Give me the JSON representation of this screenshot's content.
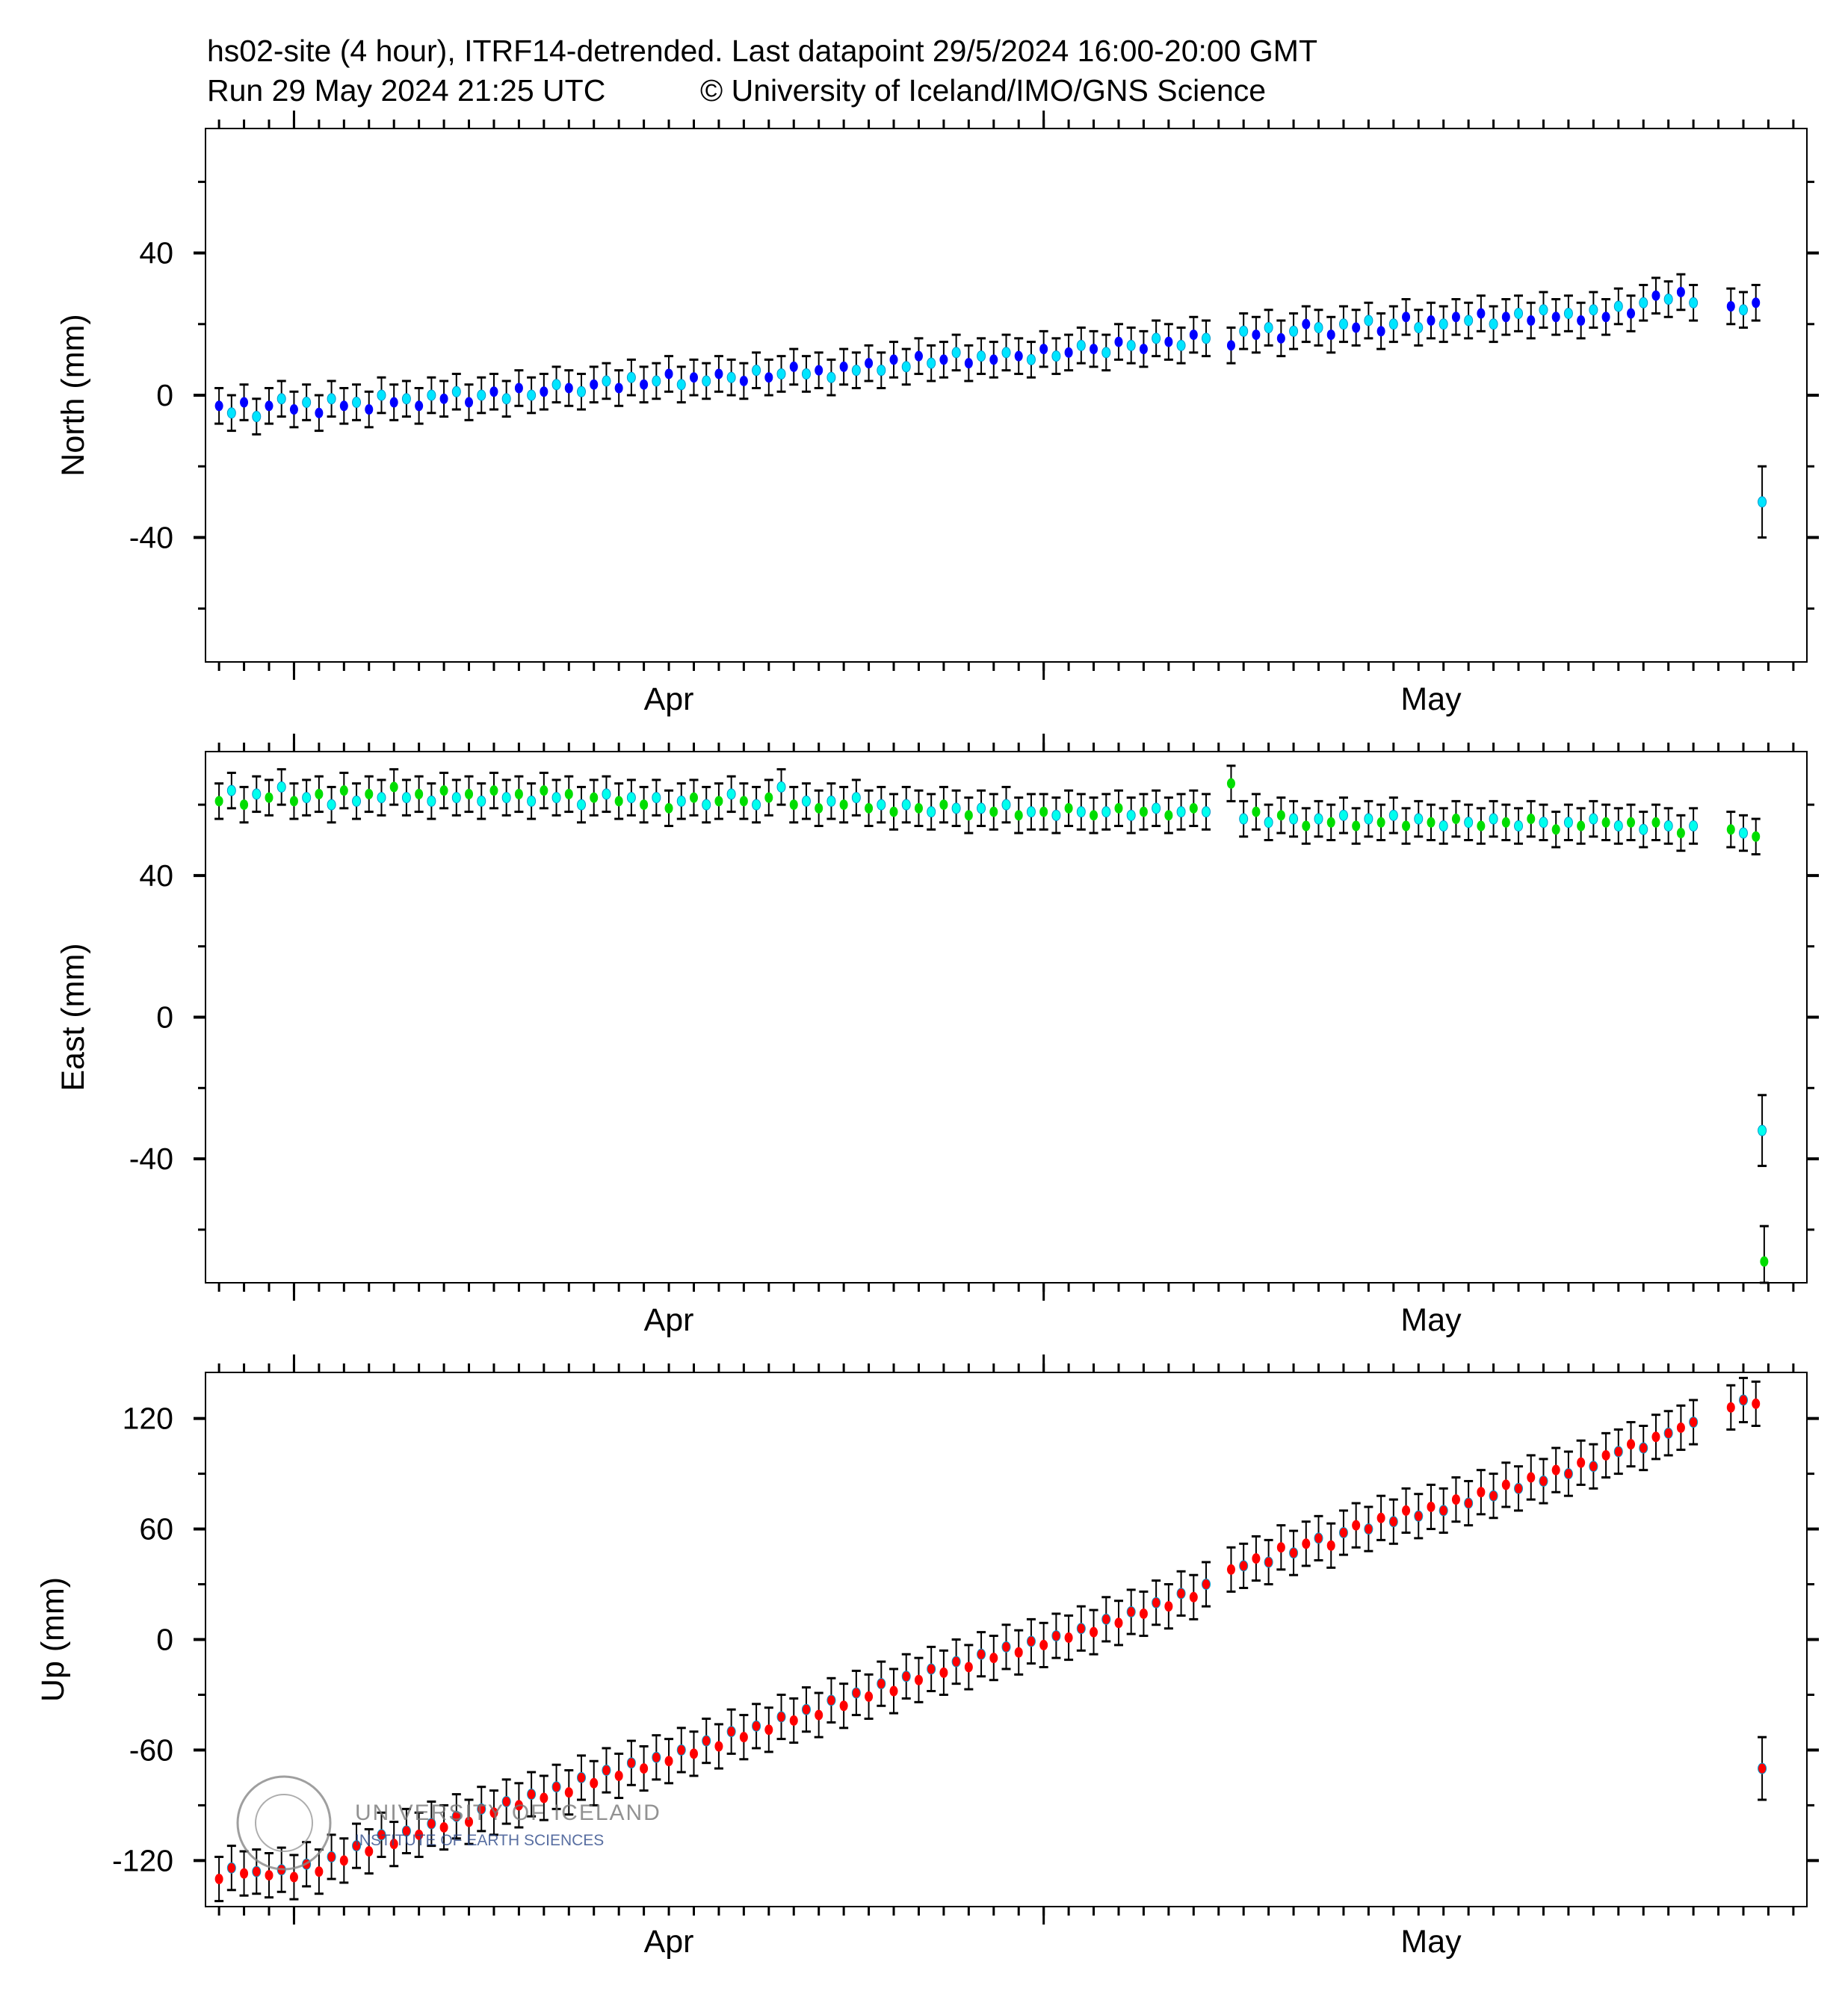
{
  "header": {
    "line1": "hs02-site (4 hour), ITRF14-detrended.  Last datapoint 29/5/2024 16:00-20:00 GMT",
    "line2_run": "Run 29 May 2024 21:25 UTC",
    "line2_copyright": "© University of Iceland/IMO/GNS Science"
  },
  "watermark": {
    "line1": "UNIVERSITY OF ICELAND",
    "line2": "INSTITUTE OF EARTH SCIENCES",
    "seal_text": "UNIVERSITATIS ISLANDIAE SIGILLUM"
  },
  "chart_data": [
    {
      "type": "scatter",
      "ylabel": "North (mm)",
      "ylim": [
        -75,
        75
      ],
      "yticks": [
        -40,
        0,
        40
      ],
      "yminor": 20,
      "error_mm": 5,
      "last_error_mm": 10,
      "colors": [
        "#0000ff",
        "#00e5ff"
      ],
      "column": 1
    },
    {
      "type": "scatter",
      "ylabel": "East (mm)",
      "ylim": [
        -75,
        75
      ],
      "yticks": [
        -40,
        0,
        40
      ],
      "yminor": 20,
      "error_mm": 5,
      "last_error_mm": 10,
      "colors": [
        "#00dd00",
        "#00ffee"
      ],
      "column": 2
    },
    {
      "type": "scatter",
      "ylabel": "Up (mm)",
      "ylim": [
        -145,
        145
      ],
      "yticks": [
        -120,
        -60,
        0,
        60,
        120
      ],
      "yminor": 30,
      "error_mm": 12,
      "last_error_mm": 17,
      "colors": [
        "#ff0000",
        "#ff0000"
      ],
      "column": 3
    }
  ],
  "x_axis": {
    "xlim": [
      "2024-03-28T11:00",
      "2024-05-31T13:00"
    ],
    "month_labels": [
      {
        "label": "Apr",
        "center": "2024-04-16T00:00"
      },
      {
        "label": "May",
        "center": "2024-05-16T12:00"
      }
    ],
    "major_ticks": [
      "2024-04-01T00:00",
      "2024-05-01T00:00"
    ],
    "minor_tick_every_days": 1
  },
  "points_columns": [
    "time",
    "north",
    "east",
    "up"
  ],
  "points": [
    [
      "2024-03-29T00:00",
      -3,
      61,
      -130
    ],
    [
      "2024-03-29T12:00",
      -5,
      64,
      -124
    ],
    [
      "2024-03-30T00:00",
      -2,
      60,
      -127
    ],
    [
      "2024-03-30T12:00",
      -6,
      63,
      -126
    ],
    [
      "2024-03-31T00:00",
      -3,
      62,
      -128
    ],
    [
      "2024-03-31T12:00",
      -1,
      65,
      -125
    ],
    [
      "2024-04-01T00:00",
      -4,
      61,
      -129
    ],
    [
      "2024-04-01T12:00",
      -2,
      62,
      -122
    ],
    [
      "2024-04-02T00:00",
      -5,
      63,
      -126
    ],
    [
      "2024-04-02T12:00",
      -1,
      60,
      -118
    ],
    [
      "2024-04-03T00:00",
      -3,
      64,
      -120
    ],
    [
      "2024-04-03T12:00",
      -2,
      61,
      -112
    ],
    [
      "2024-04-04T00:00",
      -4,
      63,
      -115
    ],
    [
      "2024-04-04T12:00",
      0,
      62,
      -106
    ],
    [
      "2024-04-05T00:00",
      -2,
      65,
      -111
    ],
    [
      "2024-04-05T12:00",
      -1,
      62,
      -104
    ],
    [
      "2024-04-06T00:00",
      -3,
      63,
      -106
    ],
    [
      "2024-04-06T12:00",
      0,
      61,
      -100
    ],
    [
      "2024-04-07T00:00",
      -1,
      64,
      -102
    ],
    [
      "2024-04-07T12:00",
      1,
      62,
      -96
    ],
    [
      "2024-04-08T00:00",
      -2,
      63,
      -99
    ],
    [
      "2024-04-08T12:00",
      0,
      61,
      -92
    ],
    [
      "2024-04-09T00:00",
      1,
      64,
      -94
    ],
    [
      "2024-04-09T12:00",
      -1,
      62,
      -88
    ],
    [
      "2024-04-10T00:00",
      2,
      63,
      -90
    ],
    [
      "2024-04-10T12:00",
      0,
      61,
      -84
    ],
    [
      "2024-04-11T00:00",
      1,
      64,
      -86
    ],
    [
      "2024-04-11T12:00",
      3,
      62,
      -80
    ],
    [
      "2024-04-12T00:00",
      2,
      63,
      -83
    ],
    [
      "2024-04-12T12:00",
      1,
      60,
      -75
    ],
    [
      "2024-04-13T00:00",
      3,
      62,
      -78
    ],
    [
      "2024-04-13T12:00",
      4,
      63,
      -71
    ],
    [
      "2024-04-14T00:00",
      2,
      61,
      -74
    ],
    [
      "2024-04-14T12:00",
      5,
      62,
      -67
    ],
    [
      "2024-04-15T00:00",
      3,
      60,
      -70
    ],
    [
      "2024-04-15T12:00",
      4,
      62,
      -64
    ],
    [
      "2024-04-16T00:00",
      6,
      59,
      -66
    ],
    [
      "2024-04-16T12:00",
      3,
      61,
      -60
    ],
    [
      "2024-04-17T00:00",
      5,
      62,
      -62
    ],
    [
      "2024-04-17T12:00",
      4,
      60,
      -55
    ],
    [
      "2024-04-18T00:00",
      6,
      61,
      -58
    ],
    [
      "2024-04-18T12:00",
      5,
      63,
      -50
    ],
    [
      "2024-04-19T00:00",
      4,
      61,
      -53
    ],
    [
      "2024-04-19T12:00",
      7,
      60,
      -47
    ],
    [
      "2024-04-20T00:00",
      5,
      62,
      -49
    ],
    [
      "2024-04-20T12:00",
      6,
      65,
      -42
    ],
    [
      "2024-04-21T00:00",
      8,
      60,
      -44
    ],
    [
      "2024-04-21T12:00",
      6,
      61,
      -38
    ],
    [
      "2024-04-22T00:00",
      7,
      59,
      -41
    ],
    [
      "2024-04-22T12:00",
      5,
      61,
      -33
    ],
    [
      "2024-04-23T00:00",
      8,
      60,
      -36
    ],
    [
      "2024-04-23T12:00",
      7,
      62,
      -29
    ],
    [
      "2024-04-24T00:00",
      9,
      59,
      -31
    ],
    [
      "2024-04-24T12:00",
      7,
      60,
      -24
    ],
    [
      "2024-04-25T00:00",
      10,
      58,
      -28
    ],
    [
      "2024-04-25T12:00",
      8,
      60,
      -20
    ],
    [
      "2024-04-26T00:00",
      11,
      59,
      -22
    ],
    [
      "2024-04-26T12:00",
      9,
      58,
      -16
    ],
    [
      "2024-04-27T00:00",
      10,
      60,
      -18
    ],
    [
      "2024-04-27T12:00",
      12,
      59,
      -12
    ],
    [
      "2024-04-28T00:00",
      9,
      57,
      -15
    ],
    [
      "2024-04-28T12:00",
      11,
      59,
      -8
    ],
    [
      "2024-04-29T00:00",
      10,
      58,
      -10
    ],
    [
      "2024-04-29T12:00",
      12,
      60,
      -4
    ],
    [
      "2024-04-30T00:00",
      11,
      57,
      -7
    ],
    [
      "2024-04-30T12:00",
      10,
      58,
      -1
    ],
    [
      "2024-05-01T00:00",
      13,
      58,
      -3
    ],
    [
      "2024-05-01T12:00",
      11,
      57,
      2
    ],
    [
      "2024-05-02T00:00",
      12,
      59,
      1
    ],
    [
      "2024-05-02T12:00",
      14,
      58,
      6
    ],
    [
      "2024-05-03T00:00",
      13,
      57,
      4
    ],
    [
      "2024-05-03T12:00",
      12,
      58,
      11
    ],
    [
      "2024-05-04T00:00",
      15,
      59,
      9
    ],
    [
      "2024-05-04T12:00",
      14,
      57,
      15
    ],
    [
      "2024-05-05T00:00",
      13,
      58,
      14
    ],
    [
      "2024-05-05T12:00",
      16,
      59,
      20
    ],
    [
      "2024-05-06T00:00",
      15,
      57,
      18
    ],
    [
      "2024-05-06T12:00",
      14,
      58,
      25
    ],
    [
      "2024-05-07T00:00",
      17,
      59,
      23
    ],
    [
      "2024-05-07T12:00",
      16,
      58,
      30
    ],
    [
      "2024-05-08T12:00",
      14,
      66,
      38
    ],
    [
      "2024-05-09T00:00",
      18,
      56,
      40
    ],
    [
      "2024-05-09T12:00",
      17,
      58,
      44
    ],
    [
      "2024-05-10T00:00",
      19,
      55,
      42
    ],
    [
      "2024-05-10T12:00",
      16,
      57,
      50
    ],
    [
      "2024-05-11T00:00",
      18,
      56,
      47
    ],
    [
      "2024-05-11T12:00",
      20,
      54,
      52
    ],
    [
      "2024-05-12T00:00",
      19,
      56,
      55
    ],
    [
      "2024-05-12T12:00",
      17,
      55,
      51
    ],
    [
      "2024-05-13T00:00",
      20,
      57,
      58
    ],
    [
      "2024-05-13T12:00",
      19,
      54,
      62
    ],
    [
      "2024-05-14T00:00",
      21,
      56,
      60
    ],
    [
      "2024-05-14T12:00",
      18,
      55,
      66
    ],
    [
      "2024-05-15T00:00",
      20,
      57,
      64
    ],
    [
      "2024-05-15T12:00",
      22,
      54,
      70
    ],
    [
      "2024-05-16T00:00",
      19,
      56,
      67
    ],
    [
      "2024-05-16T12:00",
      21,
      55,
      72
    ],
    [
      "2024-05-17T00:00",
      20,
      54,
      70
    ],
    [
      "2024-05-17T12:00",
      22,
      56,
      76
    ],
    [
      "2024-05-18T00:00",
      21,
      55,
      74
    ],
    [
      "2024-05-18T12:00",
      23,
      54,
      80
    ],
    [
      "2024-05-19T00:00",
      20,
      56,
      78
    ],
    [
      "2024-05-19T12:00",
      22,
      55,
      84
    ],
    [
      "2024-05-20T00:00",
      23,
      54,
      82
    ],
    [
      "2024-05-20T12:00",
      21,
      56,
      88
    ],
    [
      "2024-05-21T00:00",
      24,
      55,
      86
    ],
    [
      "2024-05-21T12:00",
      22,
      53,
      92
    ],
    [
      "2024-05-22T00:00",
      23,
      55,
      90
    ],
    [
      "2024-05-22T12:00",
      21,
      54,
      96
    ],
    [
      "2024-05-23T00:00",
      24,
      56,
      94
    ],
    [
      "2024-05-23T12:00",
      22,
      55,
      100
    ],
    [
      "2024-05-24T00:00",
      25,
      54,
      102
    ],
    [
      "2024-05-24T12:00",
      23,
      55,
      106
    ],
    [
      "2024-05-25T00:00",
      26,
      53,
      104
    ],
    [
      "2024-05-25T12:00",
      28,
      55,
      110
    ],
    [
      "2024-05-26T00:00",
      27,
      54,
      112
    ],
    [
      "2024-05-26T12:00",
      29,
      52,
      115
    ],
    [
      "2024-05-27T00:00",
      26,
      54,
      118
    ],
    [
      "2024-05-28T12:00",
      25,
      53,
      126
    ],
    [
      "2024-05-29T00:00",
      24,
      52,
      130
    ],
    [
      "2024-05-29T12:00",
      26,
      51,
      128
    ],
    [
      "2024-05-29T18:00",
      -30,
      -32,
      -70
    ],
    [
      "2024-05-29T20:00",
      null,
      -69,
      null
    ]
  ]
}
